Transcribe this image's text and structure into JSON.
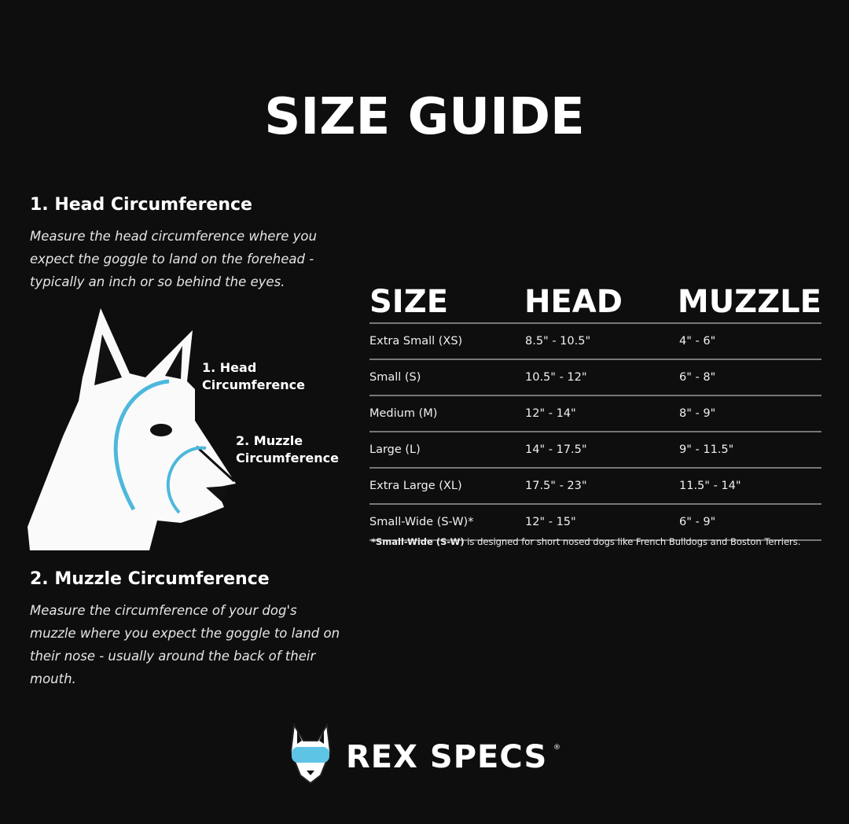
{
  "title": "SIZE GUIDE",
  "head_section": {
    "heading": "1. Head Circumference",
    "text": "Measure the head circumference where you expect the goggle to land on the forehead - typically an inch or so behind the eyes."
  },
  "muzzle_section": {
    "heading": "2. Muzzle Circumference",
    "text": "Measure the circumference of your dog's muzzle where you expect the goggle to land on their nose - usually around the back of their mouth."
  },
  "diagram": {
    "label_head_1": "1. Head",
    "label_head_2": "Circumference",
    "label_muzzle_1": "2. Muzzle",
    "label_muzzle_2": "Circumference",
    "arrow_color": "#4db8dc"
  },
  "table": {
    "headers": [
      "SIZE",
      "HEAD",
      "MUZZLE"
    ],
    "rows": [
      [
        "Extra Small (XS)",
        "8.5\" - 10.5\"",
        "4\" - 6\""
      ],
      [
        "Small (S)",
        "10.5\" - 12\"",
        "6\" - 8\""
      ],
      [
        "Medium (M)",
        "12\" - 14\"",
        "8\" - 9\""
      ],
      [
        "Large (L)",
        "14\" - 17.5\"",
        "9\" - 11.5\""
      ],
      [
        "Extra Large (XL)",
        "17.5\" - 23\"",
        "11.5\" - 14\""
      ],
      [
        "Small-Wide (S-W)*",
        "12\" - 15\"",
        "6\" - 9\""
      ]
    ],
    "note_bold": "*Small-Wide (S-W)",
    "note_rest": " is designed for short nosed dogs like French Bulldogs and Boston Terriers."
  },
  "brand": {
    "name": "REX SPECS",
    "registered": "®",
    "goggle_color": "#5ec4e6"
  }
}
